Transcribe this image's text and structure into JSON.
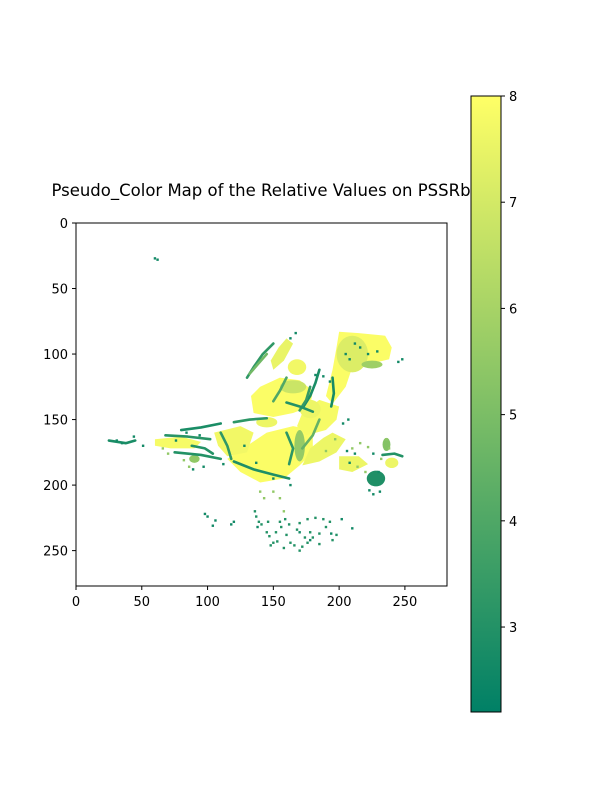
{
  "chart_data": {
    "type": "heatmap",
    "title": "Pseudo_Color Map of the Relative Values on PSSRb",
    "xlabel": "",
    "ylabel": "",
    "xlim": [
      0,
      282
    ],
    "ylim": [
      277,
      0
    ],
    "x_ticks": [
      0,
      50,
      100,
      150,
      200,
      250
    ],
    "y_ticks": [
      0,
      50,
      100,
      150,
      200,
      250
    ],
    "colormap": "summer",
    "colorbar": {
      "range": [
        2.2,
        8
      ],
      "ticks": [
        3,
        4,
        5,
        6,
        7,
        8
      ],
      "colors": [
        "#008066",
        "#ffff66"
      ]
    },
    "background": "white (no data)",
    "regions": [
      {
        "shape": "poly",
        "value": 7.9,
        "points": [
          [
            130,
            170
          ],
          [
            145,
            160
          ],
          [
            165,
            155
          ],
          [
            180,
            158
          ],
          [
            180,
            175
          ],
          [
            170,
            185
          ],
          [
            158,
            195
          ],
          [
            140,
            198
          ],
          [
            125,
            190
          ],
          [
            115,
            180
          ]
        ]
      },
      {
        "shape": "poly",
        "value": 7.9,
        "points": [
          [
            140,
            125
          ],
          [
            155,
            118
          ],
          [
            170,
            120
          ],
          [
            180,
            128
          ],
          [
            178,
            140
          ],
          [
            165,
            145
          ],
          [
            150,
            148
          ],
          [
            135,
            145
          ],
          [
            133,
            132
          ]
        ]
      },
      {
        "shape": "poly",
        "value": 7.9,
        "points": [
          [
            200,
            83
          ],
          [
            215,
            84
          ],
          [
            235,
            86
          ],
          [
            240,
            95
          ],
          [
            238,
            104
          ],
          [
            222,
            108
          ],
          [
            210,
            110
          ],
          [
            205,
            125
          ],
          [
            195,
            138
          ],
          [
            190,
            132
          ],
          [
            195,
            112
          ],
          [
            198,
            95
          ]
        ]
      },
      {
        "shape": "poly",
        "value": 7.8,
        "points": [
          [
            185,
            135
          ],
          [
            200,
            140
          ],
          [
            198,
            150
          ],
          [
            190,
            158
          ],
          [
            175,
            162
          ],
          [
            168,
            155
          ],
          [
            172,
            145
          ]
        ]
      },
      {
        "shape": "poly",
        "value": 7.6,
        "points": [
          [
            195,
            160
          ],
          [
            205,
            165
          ],
          [
            198,
            175
          ],
          [
            185,
            182
          ],
          [
            172,
            185
          ],
          [
            178,
            172
          ],
          [
            188,
            164
          ]
        ]
      },
      {
        "shape": "poly",
        "value": 7.5,
        "points": [
          [
            160,
            88
          ],
          [
            165,
            92
          ],
          [
            158,
            105
          ],
          [
            150,
            112
          ],
          [
            148,
            105
          ],
          [
            154,
            95
          ]
        ]
      },
      {
        "shape": "poly",
        "value": 7.7,
        "points": [
          [
            105,
            160
          ],
          [
            125,
            155
          ],
          [
            135,
            160
          ],
          [
            130,
            175
          ],
          [
            115,
            178
          ],
          [
            108,
            170
          ]
        ]
      },
      {
        "shape": "poly",
        "value": 7.8,
        "points": [
          [
            60,
            165
          ],
          [
            80,
            163
          ],
          [
            95,
            167
          ],
          [
            90,
            172
          ],
          [
            72,
            172
          ],
          [
            60,
            170
          ]
        ]
      },
      {
        "shape": "poly",
        "value": 7.6,
        "points": [
          [
            200,
            178
          ],
          [
            215,
            178
          ],
          [
            222,
            184
          ],
          [
            210,
            190
          ],
          [
            200,
            188
          ]
        ]
      },
      {
        "shape": "ell",
        "value": 7.2,
        "cx": 210,
        "cy": 100,
        "rx": 12,
        "ry": 14
      },
      {
        "shape": "ell",
        "value": 7.7,
        "cx": 168,
        "cy": 110,
        "rx": 7,
        "ry": 6
      },
      {
        "shape": "ell",
        "value": 7.6,
        "cx": 178,
        "cy": 142,
        "rx": 8,
        "ry": 7
      },
      {
        "shape": "ell",
        "value": 7.6,
        "cx": 240,
        "cy": 183,
        "rx": 5,
        "ry": 4
      },
      {
        "shape": "ell",
        "value": 7.6,
        "cx": 145,
        "cy": 152,
        "rx": 8,
        "ry": 4
      },
      {
        "shape": "ell",
        "value": 6.8,
        "cx": 165,
        "cy": 125,
        "rx": 10,
        "ry": 5
      },
      {
        "shape": "ell",
        "value": 5.8,
        "cx": 225,
        "cy": 108,
        "rx": 8,
        "ry": 3
      },
      {
        "shape": "ell",
        "value": 5.2,
        "cx": 236,
        "cy": 169,
        "rx": 3,
        "ry": 5
      },
      {
        "shape": "ell",
        "value": 5.5,
        "cx": 90,
        "cy": 180,
        "rx": 4,
        "ry": 3
      },
      {
        "shape": "ell",
        "value": 2.9,
        "cx": 228,
        "cy": 195,
        "rx": 7,
        "ry": 6
      },
      {
        "shape": "ell",
        "value": 5.6,
        "cx": 170,
        "cy": 170,
        "rx": 4,
        "ry": 12
      },
      {
        "shape": "line",
        "value": 3.3,
        "points": [
          [
            150,
            92
          ],
          [
            142,
            100
          ],
          [
            135,
            110
          ],
          [
            130,
            118
          ]
        ]
      },
      {
        "shape": "line",
        "value": 4.8,
        "points": [
          [
            145,
            100
          ],
          [
            138,
            108
          ],
          [
            132,
            115
          ]
        ]
      },
      {
        "shape": "line",
        "value": 2.8,
        "points": [
          [
            185,
            112
          ],
          [
            182,
            122
          ],
          [
            178,
            132
          ],
          [
            173,
            140
          ]
        ]
      },
      {
        "shape": "line",
        "value": 3.4,
        "points": [
          [
            178,
            125
          ],
          [
            175,
            135
          ],
          [
            170,
            143
          ]
        ]
      },
      {
        "shape": "line",
        "value": 2.7,
        "points": [
          [
            195,
            118
          ],
          [
            196,
            130
          ],
          [
            194,
            140
          ]
        ]
      },
      {
        "shape": "line",
        "value": 4.0,
        "points": [
          [
            160,
            118
          ],
          [
            155,
            128
          ],
          [
            150,
            136
          ]
        ]
      },
      {
        "shape": "line",
        "value": 3.0,
        "points": [
          [
            160,
            137
          ],
          [
            170,
            140
          ],
          [
            180,
            144
          ]
        ]
      },
      {
        "shape": "line",
        "value": 3.2,
        "points": [
          [
            120,
            152
          ],
          [
            132,
            150
          ],
          [
            145,
            149
          ]
        ]
      },
      {
        "shape": "line",
        "value": 2.8,
        "points": [
          [
            80,
            158
          ],
          [
            95,
            156
          ],
          [
            110,
            153
          ]
        ]
      },
      {
        "shape": "line",
        "value": 3.1,
        "points": [
          [
            68,
            162
          ],
          [
            85,
            163
          ],
          [
            102,
            165
          ]
        ]
      },
      {
        "shape": "line",
        "value": 3.0,
        "points": [
          [
            75,
            175
          ],
          [
            95,
            177
          ],
          [
            110,
            180
          ]
        ]
      },
      {
        "shape": "line",
        "value": 2.9,
        "points": [
          [
            120,
            182
          ],
          [
            135,
            188
          ],
          [
            150,
            192
          ],
          [
            162,
            195
          ]
        ]
      },
      {
        "shape": "line",
        "value": 3.3,
        "points": [
          [
            110,
            160
          ],
          [
            115,
            170
          ],
          [
            118,
            180
          ]
        ]
      },
      {
        "shape": "line",
        "value": 3.2,
        "points": [
          [
            160,
            160
          ],
          [
            165,
            172
          ],
          [
            162,
            184
          ]
        ]
      },
      {
        "shape": "line",
        "value": 4.5,
        "points": [
          [
            185,
            150
          ],
          [
            180,
            162
          ],
          [
            172,
            172
          ]
        ]
      },
      {
        "shape": "line",
        "value": 3.0,
        "points": [
          [
            233,
            177
          ],
          [
            242,
            176
          ],
          [
            248,
            178
          ]
        ]
      },
      {
        "shape": "line",
        "value": 2.8,
        "points": [
          [
            25,
            166
          ],
          [
            38,
            168
          ],
          [
            45,
            166
          ]
        ]
      },
      {
        "shape": "line",
        "value": 3.0,
        "points": [
          [
            88,
            170
          ],
          [
            98,
            172
          ],
          [
            104,
            176
          ]
        ]
      }
    ],
    "dots": [
      {
        "value": 2.6,
        "points": [
          [
            60,
            27
          ],
          [
            62,
            28
          ],
          [
            222,
            100
          ],
          [
            245,
            106
          ],
          [
            248,
            104
          ],
          [
            205,
            100
          ],
          [
            208,
            104
          ],
          [
            212,
            92
          ],
          [
            216,
            95
          ],
          [
            229,
            98
          ],
          [
            206,
            174
          ],
          [
            212,
            176
          ],
          [
            226,
            176
          ],
          [
            208,
            183
          ],
          [
            230,
            190
          ],
          [
            223,
            204
          ],
          [
            226,
            207
          ],
          [
            231,
            205
          ],
          [
            98,
            222
          ],
          [
            100,
            224
          ],
          [
            106,
            227
          ],
          [
            104,
            231
          ],
          [
            120,
            228
          ],
          [
            118,
            230
          ],
          [
            138,
            232
          ],
          [
            170,
            236
          ],
          [
            178,
            242
          ],
          [
            194,
            237
          ],
          [
            202,
            226
          ],
          [
            210,
            233
          ],
          [
            128,
            170
          ],
          [
            137,
            183
          ],
          [
            150,
            195
          ],
          [
            163,
            200
          ],
          [
            89,
            188
          ],
          [
            97,
            186
          ],
          [
            112,
            184
          ],
          [
            51,
            170
          ],
          [
            44,
            163
          ],
          [
            31,
            166
          ],
          [
            35,
            168
          ],
          [
            76,
            166
          ],
          [
            84,
            160
          ],
          [
            94,
            162
          ],
          [
            203,
            153
          ],
          [
            207,
            150
          ],
          [
            193,
            121
          ],
          [
            188,
            117
          ],
          [
            182,
            116
          ],
          [
            163,
            88
          ],
          [
            167,
            84
          ]
        ]
      },
      {
        "value": 3.0,
        "points": [
          [
            136,
            220
          ],
          [
            137,
            224
          ],
          [
            139,
            228
          ],
          [
            141,
            230
          ],
          [
            146,
            228
          ],
          [
            145,
            236
          ],
          [
            147,
            239
          ],
          [
            152,
            236
          ],
          [
            156,
            232
          ],
          [
            160,
            238
          ],
          [
            163,
            244
          ],
          [
            166,
            246
          ],
          [
            172,
            247
          ],
          [
            176,
            244
          ],
          [
            180,
            240
          ],
          [
            185,
            237
          ],
          [
            190,
            232
          ],
          [
            193,
            228
          ],
          [
            188,
            226
          ],
          [
            182,
            225
          ],
          [
            176,
            226
          ],
          [
            170,
            229
          ],
          [
            168,
            234
          ],
          [
            162,
            230
          ],
          [
            159,
            226
          ],
          [
            155,
            228
          ],
          [
            153,
            243
          ],
          [
            150,
            244
          ],
          [
            148,
            246
          ],
          [
            158,
            248
          ],
          [
            170,
            250
          ],
          [
            185,
            245
          ],
          [
            195,
            242
          ],
          [
            198,
            238
          ],
          [
            178,
            236
          ],
          [
            174,
            240
          ]
        ]
      },
      {
        "value": 5.5,
        "points": [
          [
            210,
            172
          ],
          [
            216,
            168
          ],
          [
            222,
            171
          ],
          [
            236,
            165
          ],
          [
            238,
            172
          ],
          [
            232,
            180
          ],
          [
            214,
            186
          ],
          [
            220,
            190
          ],
          [
            197,
            165
          ],
          [
            190,
            174
          ],
          [
            82,
            181
          ],
          [
            86,
            186
          ],
          [
            70,
            176
          ],
          [
            66,
            172
          ],
          [
            150,
            205
          ],
          [
            155,
            210
          ],
          [
            158,
            220
          ],
          [
            140,
            205
          ],
          [
            143,
            210
          ]
        ]
      }
    ]
  }
}
